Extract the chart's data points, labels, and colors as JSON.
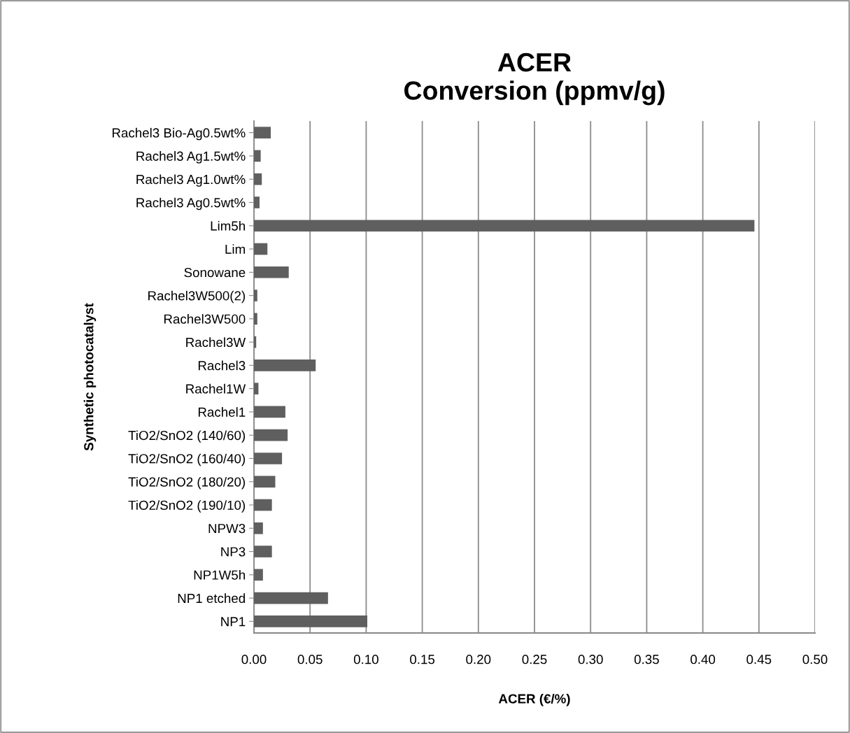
{
  "chart_data": {
    "type": "bar",
    "orientation": "horizontal",
    "title": "ACER\nConversion (ppmv/g)",
    "xlabel": "ACER (€/%)",
    "ylabel": "Synthetic photocatalyst",
    "categories": [
      "Rachel3 Bio-Ag0.5wt%",
      "Rachel3 Ag1.5wt%",
      "Rachel3 Ag1.0wt%",
      "Rachel3 Ag0.5wt%",
      "Lim5h",
      "Lim",
      "Sonowane",
      "Rachel3W500(2)",
      "Rachel3W500",
      "Rachel3W",
      "Rachel3",
      "Rachel1W",
      "Rachel1",
      "TiO2/SnO2 (140/60)",
      "TiO2/SnO2 (160/40)",
      "TiO2/SnO2 (180/20)",
      "TiO2/SnO2 (190/10)",
      "NPW3",
      "NP3",
      "NP1W5h",
      "NP1 etched",
      "NP1"
    ],
    "values": [
      0.015,
      0.006,
      0.007,
      0.005,
      0.446,
      0.012,
      0.031,
      0.003,
      0.003,
      0.002,
      0.055,
      0.004,
      0.028,
      0.03,
      0.025,
      0.019,
      0.016,
      0.008,
      0.016,
      0.008,
      0.066,
      0.101
    ],
    "color": "#5f5f5f",
    "xlim": [
      0,
      0.5
    ],
    "xticks": [
      {
        "value": 0,
        "label": "0.00"
      },
      {
        "value": 0.05,
        "label": "0.05"
      },
      {
        "value": 0.1,
        "label": "0.10"
      },
      {
        "value": 0.15,
        "label": "0.15"
      },
      {
        "value": 0.2,
        "label": "0.20"
      },
      {
        "value": 0.25,
        "label": "0.25"
      },
      {
        "value": 0.3,
        "label": "0.30"
      },
      {
        "value": 0.35,
        "label": "0.35"
      },
      {
        "value": 0.4,
        "label": "0.40"
      },
      {
        "value": 0.45,
        "label": "0.45"
      },
      {
        "value": 0.5,
        "label": "0.50"
      }
    ],
    "grid": "x",
    "legend": false
  }
}
